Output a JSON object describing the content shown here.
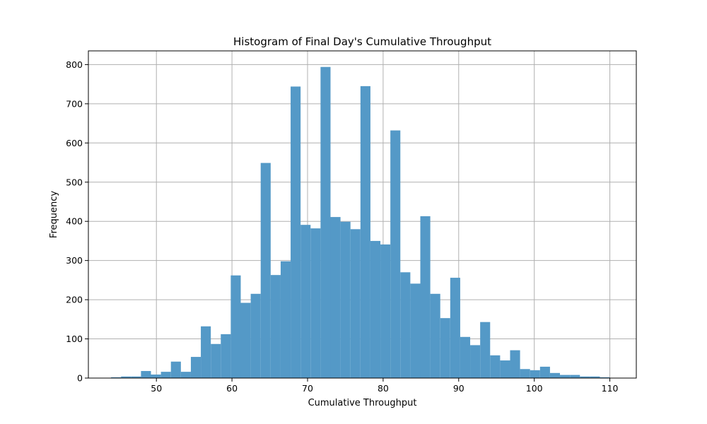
{
  "chart_data": {
    "type": "bar",
    "title": "Histogram of Final Day's Cumulative Throughput",
    "xlabel": "Cumulative Throughput",
    "ylabel": "Frequency",
    "xlim": [
      41,
      113.5
    ],
    "ylim": [
      0,
      835
    ],
    "xticks": [
      50,
      60,
      70,
      80,
      90,
      100,
      110
    ],
    "yticks": [
      0,
      100,
      200,
      300,
      400,
      500,
      600,
      700,
      800
    ],
    "grid": true,
    "bar_color": "#5499c7",
    "bin_start": 44,
    "bin_width": 1.32,
    "values": [
      2,
      4,
      4,
      18,
      9,
      16,
      42,
      16,
      54,
      132,
      87,
      112,
      262,
      192,
      215,
      549,
      263,
      298,
      744,
      391,
      382,
      794,
      411,
      399,
      380,
      745,
      350,
      341,
      632,
      270,
      241,
      413,
      215,
      153,
      256,
      105,
      84,
      143,
      58,
      45,
      71,
      23,
      20,
      29,
      13,
      8,
      8,
      4,
      4,
      2
    ]
  }
}
